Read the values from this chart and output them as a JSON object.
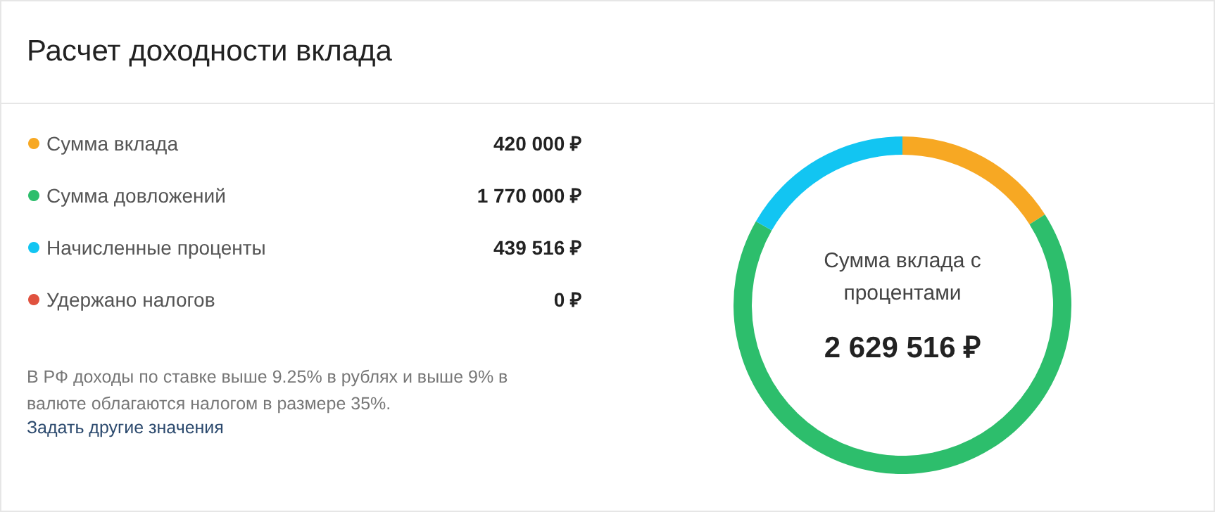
{
  "chart_data": {
    "type": "donut",
    "title": "Расчет доходности вклада",
    "categories": [
      "Сумма вклада",
      "Сумма довложений",
      "Начисленные проценты",
      "Удержано налогов"
    ],
    "values": [
      420000,
      1770000,
      439516,
      0
    ],
    "value_labels": [
      "420 000 ₽",
      "1 770 000 ₽",
      "439 516 ₽",
      "0 ₽"
    ],
    "colors": [
      "#f7a823",
      "#2dbe6c",
      "#12c5f2",
      "#e0523f"
    ],
    "legend": "left",
    "annotations": [
      "Сумма вклада с процентами",
      "2 629 516 ₽",
      "В РФ доходы по ставке выше 9.25% в рублях и выше 9% в валюте облагаются налогом в размере 35%.",
      "Задать другие значения"
    ]
  }
}
